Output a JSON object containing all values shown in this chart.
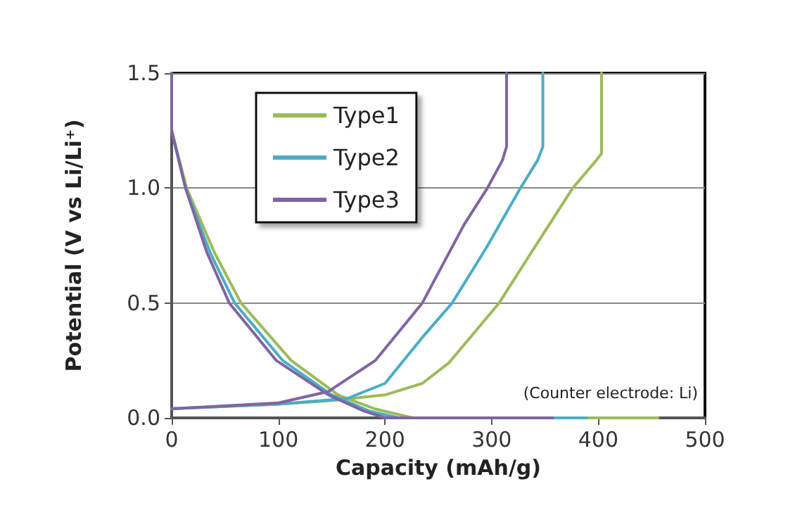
{
  "chart_data": {
    "type": "line",
    "xlabel": "Capacity (mAh/g)",
    "ylabel": "Potential (V vs Li/Li⁺)",
    "annotations": [
      "(Counter electrode: Li)"
    ],
    "xlim": [
      0,
      500
    ],
    "xticks": [
      0,
      100,
      200,
      300,
      400,
      500
    ],
    "ylim": [
      0,
      1.5
    ],
    "yticks": [
      {
        "value": 0,
        "label": "0.0"
      },
      {
        "value": 0.5,
        "label": "0.5"
      },
      {
        "value": 1,
        "label": "1.0"
      },
      {
        "value": 1.5,
        "label": "1.5"
      }
    ],
    "grid": "y",
    "legend": "top left",
    "marker": "none",
    "line_style": "solid",
    "series": [
      {
        "name": "Type1",
        "color": "#9bbb59",
        "x": [
          0,
          0,
          14,
          40,
          65,
          112,
          156,
          190,
          226,
          456,
          null,
          0,
          100,
          150,
          200,
          235,
          260,
          307,
          340,
          376,
          398,
          403,
          403
        ],
        "values": [
          1.5,
          1.25,
          1.0,
          0.72,
          0.5,
          0.25,
          0.1,
          0.04,
          0,
          0,
          null,
          0.04,
          0.06,
          0.075,
          0.1,
          0.15,
          0.24,
          0.5,
          0.74,
          1.0,
          1.12,
          1.15,
          1.5
        ]
      },
      {
        "name": "Type2",
        "color": "#4bacc6",
        "x": [
          0,
          0,
          13,
          36,
          59,
          104,
          150,
          185,
          213,
          389,
          null,
          0,
          100,
          165,
          200,
          235,
          263,
          295,
          327,
          343,
          348,
          348
        ],
        "values": [
          1.5,
          1.25,
          1.0,
          0.72,
          0.5,
          0.25,
          0.1,
          0.03,
          0,
          0,
          null,
          0.04,
          0.06,
          0.085,
          0.15,
          0.35,
          0.5,
          0.74,
          1.0,
          1.12,
          1.18,
          1.5
        ]
      },
      {
        "name": "Type3",
        "color": "#8064a2",
        "x": [
          0,
          0,
          13,
          33,
          54,
          98,
          147,
          180,
          200,
          357,
          null,
          0,
          100,
          147,
          191,
          235,
          274,
          296,
          310,
          314,
          314
        ],
        "values": [
          1.5,
          1.25,
          1.0,
          0.72,
          0.5,
          0.25,
          0.1,
          0.03,
          0,
          0,
          null,
          0.04,
          0.065,
          0.115,
          0.25,
          0.5,
          0.84,
          1.0,
          1.12,
          1.18,
          1.5
        ]
      }
    ]
  }
}
